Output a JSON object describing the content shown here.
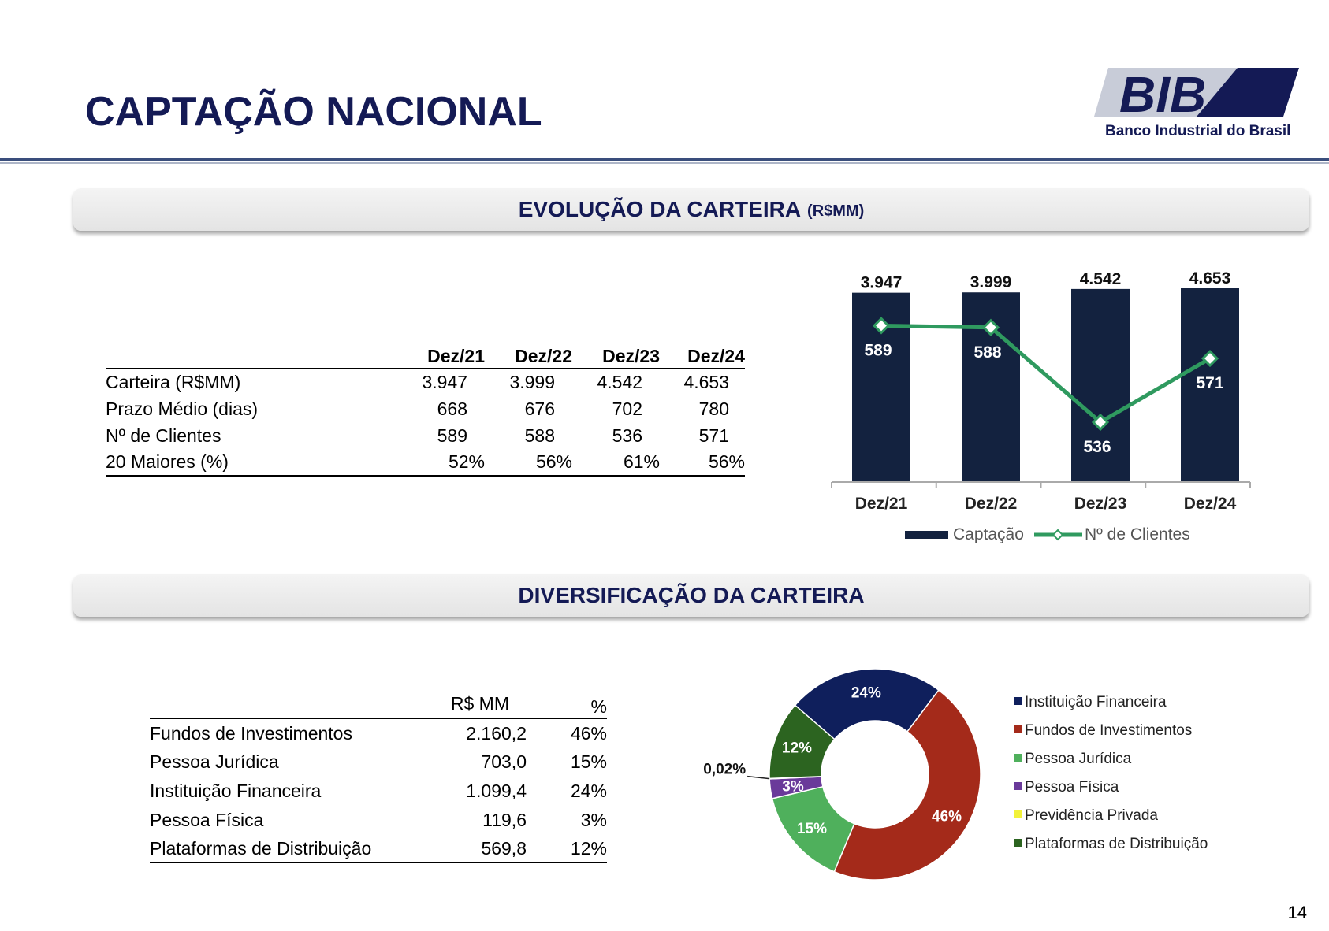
{
  "header": {
    "title": "CAPTAÇÃO NACIONAL",
    "logo_text": "BIB",
    "logo_subtitle": "Banco Industrial do Brasil"
  },
  "section1": {
    "title": "EVOLUÇÃO DA CARTEIRA",
    "unit": "(R$MM)"
  },
  "section2": {
    "title": "DIVERSIFICAÇÃO DA CARTEIRA"
  },
  "table1": {
    "headers": [
      "",
      "Dez/21",
      "Dez/22",
      "Dez/23",
      "Dez/24"
    ],
    "rows": [
      {
        "label": "Carteira (R$MM)",
        "values": [
          "3.947",
          "3.999",
          "4.542",
          "4.653"
        ]
      },
      {
        "label": "Prazo Médio (dias)",
        "values": [
          "668",
          "676",
          "702",
          "780"
        ]
      },
      {
        "label": "Nº de Clientes",
        "values": [
          "589",
          "588",
          "536",
          "571"
        ]
      },
      {
        "label": "20 Maiores (%)",
        "values": [
          "52%",
          "56%",
          "61%",
          "56%"
        ]
      }
    ]
  },
  "table2": {
    "headers": [
      "",
      "R$ MM",
      "%"
    ],
    "rows": [
      {
        "label": "Fundos de Investimentos",
        "value": "2.160,2",
        "pct": "46%"
      },
      {
        "label": "Pessoa Jurídica",
        "value": "703,0",
        "pct": "15%"
      },
      {
        "label": "Instituição Financeira",
        "value": "1.099,4",
        "pct": "24%"
      },
      {
        "label": "Pessoa Física",
        "value": "119,6",
        "pct": "3%"
      },
      {
        "label": "Plataformas de Distribuição",
        "value": "569,8",
        "pct": "12%"
      }
    ]
  },
  "page_number": "14",
  "colors": {
    "navy": "#13223f",
    "line_green": "#2f9a5f",
    "title_navy": "#141a55"
  },
  "chart_data": [
    {
      "type": "bar",
      "categories": [
        "Dez/21",
        "Dez/22",
        "Dez/23",
        "Dez/24"
      ],
      "series": [
        {
          "name": "Captação",
          "type": "bar",
          "values": [
            3947,
            3999,
            4542,
            4653
          ],
          "labels": [
            "3.947",
            "3.999",
            "4.542",
            "4.653"
          ],
          "color": "#13223f"
        },
        {
          "name": "Nº de Clientes",
          "type": "line",
          "values": [
            589,
            588,
            536,
            571
          ],
          "labels": [
            "589",
            "588",
            "536",
            "571"
          ],
          "color": "#2f9a5f"
        }
      ],
      "legend": "bottom"
    },
    {
      "type": "pie",
      "donut": true,
      "slices": [
        {
          "name": "Instituição Financeira",
          "value": 24,
          "label": "24%",
          "color": "#0f1f5c"
        },
        {
          "name": "Fundos de Investimentos",
          "value": 46,
          "label": "46%",
          "color": "#a42a1a"
        },
        {
          "name": "Pessoa Jurídica",
          "value": 15,
          "label": "15%",
          "color": "#4fb05c"
        },
        {
          "name": "Pessoa Física",
          "value": 3,
          "label": "3%",
          "color": "#6a3a9a"
        },
        {
          "name": "Previdência Privada",
          "value": 0.02,
          "label": "0,02%",
          "color": "#f2f23a"
        },
        {
          "name": "Plataformas de Distribuição",
          "value": 12,
          "label": "12%",
          "color": "#2c6420"
        }
      ],
      "legend": "right"
    }
  ]
}
